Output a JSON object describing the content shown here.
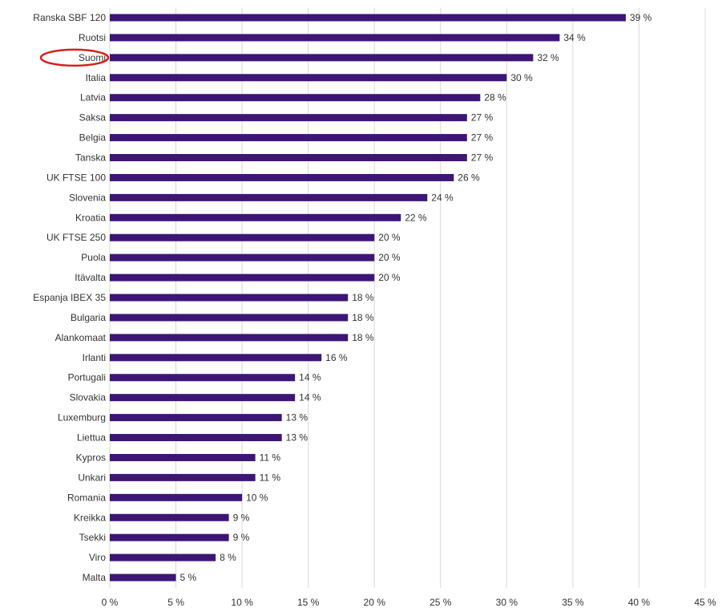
{
  "chart_data": {
    "type": "bar",
    "orientation": "horizontal",
    "categories": [
      "Ranska SBF 120",
      "Ruotsi",
      "Suomi",
      "Italia",
      "Latvia",
      "Saksa",
      "Belgia",
      "Tanska",
      "UK FTSE 100",
      "Slovenia",
      "Kroatia",
      "UK FTSE 250",
      "Puola",
      "Itävalta",
      "Espanja IBEX 35",
      "Bulgaria",
      "Alankomaat",
      "Irlanti",
      "Portugali",
      "Slovakia",
      "Luxemburg",
      "Liettua",
      "Kypros",
      "Unkari",
      "Romania",
      "Kreikka",
      "Tsekki",
      "Viro",
      "Malta"
    ],
    "values": [
      39,
      34,
      32,
      30,
      28,
      27,
      27,
      27,
      26,
      24,
      22,
      20,
      20,
      20,
      18,
      18,
      18,
      16,
      14,
      14,
      13,
      13,
      11,
      11,
      10,
      9,
      9,
      8,
      5
    ],
    "value_labels": [
      "39 %",
      "34 %",
      "32 %",
      "30 %",
      "28 %",
      "27 %",
      "27 %",
      "27 %",
      "26 %",
      "24 %",
      "22 %",
      "20 %",
      "20 %",
      "20 %",
      "18 %",
      "18 %",
      "18 %",
      "16 %",
      "14 %",
      "14 %",
      "13 %",
      "13 %",
      "11 %",
      "11 %",
      "10 %",
      "9 %",
      "9 %",
      "8 %",
      "5 %"
    ],
    "x_ticks": [
      0,
      5,
      10,
      15,
      20,
      25,
      30,
      35,
      40,
      45
    ],
    "x_tick_labels": [
      "0 %",
      "5 %",
      "10 %",
      "15 %",
      "20 %",
      "25 %",
      "30 %",
      "35 %",
      "40 %",
      "45 %"
    ],
    "xlim": [
      0,
      45
    ],
    "grid": "vertical",
    "bar_color": "#3d1675",
    "highlighted_category": "Suomi",
    "highlight_color": "#d62020",
    "title": "",
    "xlabel": "",
    "ylabel": ""
  }
}
